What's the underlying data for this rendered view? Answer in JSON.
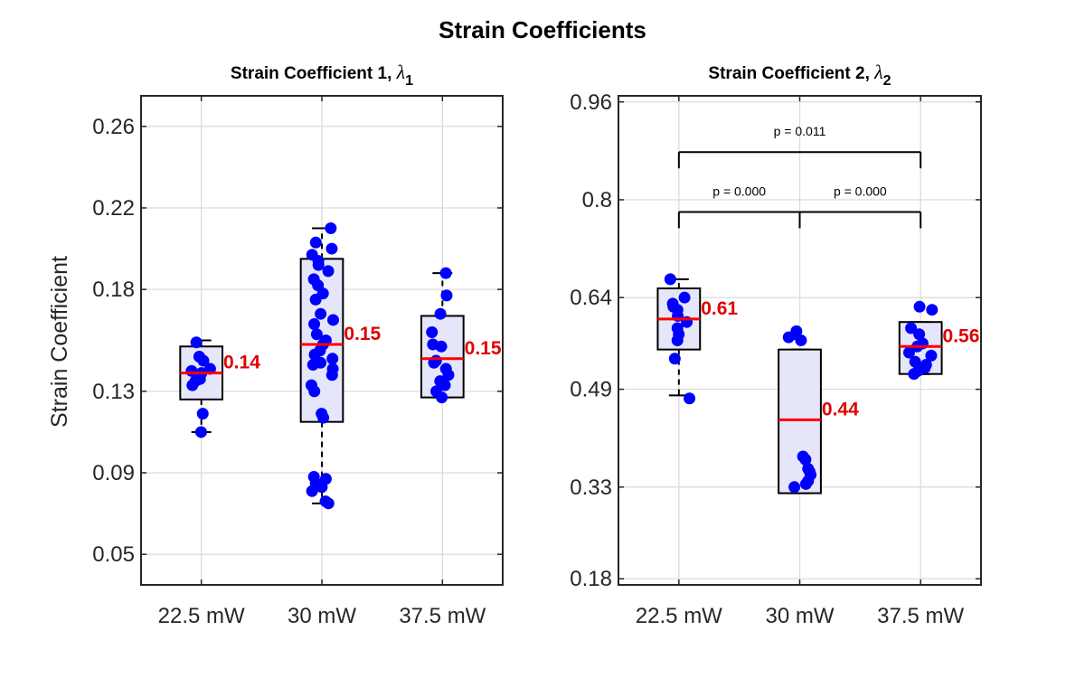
{
  "title": "Strain Coefficients",
  "y_label": "Strain Coefficient",
  "colors": {
    "points": "#0000ff",
    "median": "#ff0000",
    "median_label": "#e00000",
    "box_fill": "#e6e6fa",
    "grid": "#dcdcdc"
  },
  "chart_data": [
    {
      "type": "box",
      "title": "Strain Coefficient 1, ",
      "title_symbol": "λ",
      "title_subscript": "1",
      "categories": [
        "22.5 mW",
        "30 mW",
        "37.5 mW"
      ],
      "ylim": [
        0.035,
        0.275
      ],
      "yticks": [
        0.05,
        0.09,
        0.13,
        0.18,
        0.22,
        0.26
      ],
      "ytick_labels": [
        "0.05",
        "0.09",
        "0.13",
        "0.18",
        "0.22",
        "0.26"
      ],
      "grid": true,
      "boxes": [
        {
          "q1": 0.126,
          "q3": 0.152,
          "median": 0.139,
          "whisker_low": 0.11,
          "whisker_high": 0.155,
          "median_label": "0.14"
        },
        {
          "q1": 0.115,
          "q3": 0.195,
          "median": 0.153,
          "whisker_low": 0.075,
          "whisker_high": 0.21,
          "median_label": "0.15"
        },
        {
          "q1": 0.127,
          "q3": 0.167,
          "median": 0.146,
          "whisker_low": 0.127,
          "whisker_high": 0.188,
          "median_label": "0.15"
        }
      ],
      "points": [
        [
          0.11,
          0.119,
          0.133,
          0.135,
          0.136,
          0.139,
          0.14,
          0.141,
          0.145,
          0.147,
          0.154
        ],
        [
          0.075,
          0.076,
          0.081,
          0.083,
          0.085,
          0.087,
          0.088,
          0.117,
          0.119,
          0.13,
          0.133,
          0.138,
          0.141,
          0.143,
          0.144,
          0.146,
          0.148,
          0.15,
          0.153,
          0.155,
          0.158,
          0.163,
          0.165,
          0.168,
          0.175,
          0.178,
          0.182,
          0.185,
          0.189,
          0.192,
          0.194,
          0.197,
          0.2,
          0.203,
          0.21
        ],
        [
          0.127,
          0.13,
          0.133,
          0.135,
          0.138,
          0.141,
          0.144,
          0.145,
          0.152,
          0.153,
          0.159,
          0.168,
          0.177,
          0.188
        ]
      ],
      "significance": []
    },
    {
      "type": "box",
      "title": "Strain Coefficient 2, ",
      "title_symbol": "λ",
      "title_subscript": "2",
      "categories": [
        "22.5 mW",
        "30 mW",
        "37.5 mW"
      ],
      "ylim": [
        0.17,
        0.97
      ],
      "yticks": [
        0.18,
        0.33,
        0.49,
        0.64,
        0.8,
        0.96
      ],
      "ytick_labels": [
        "0.18",
        "0.33",
        "0.49",
        "0.64",
        "0.8",
        "0.96"
      ],
      "grid": true,
      "boxes": [
        {
          "q1": 0.555,
          "q3": 0.655,
          "median": 0.605,
          "whisker_low": 0.48,
          "whisker_high": 0.67,
          "median_label": "0.61"
        },
        {
          "q1": 0.32,
          "q3": 0.555,
          "median": 0.44,
          "whisker_low": 0.32,
          "whisker_high": 0.555,
          "median_label": "0.44"
        },
        {
          "q1": 0.515,
          "q3": 0.6,
          "median": 0.56,
          "whisker_low": 0.515,
          "whisker_high": 0.6,
          "median_label": "0.56"
        }
      ],
      "points": [
        [
          0.475,
          0.54,
          0.57,
          0.58,
          0.59,
          0.6,
          0.61,
          0.62,
          0.625,
          0.63,
          0.64,
          0.67
        ],
        [
          0.33,
          0.335,
          0.34,
          0.35,
          0.355,
          0.36,
          0.375,
          0.38,
          0.57,
          0.575,
          0.58,
          0.585
        ],
        [
          0.515,
          0.52,
          0.525,
          0.53,
          0.535,
          0.545,
          0.55,
          0.56,
          0.565,
          0.58,
          0.59,
          0.62,
          0.625
        ]
      ],
      "significance": [
        {
          "from": 0,
          "to": 2,
          "label": "p = 0.011",
          "level": 0.878
        },
        {
          "from": 0,
          "to": 1,
          "label": "p = 0.000",
          "level": 0.78
        },
        {
          "from": 1,
          "to": 2,
          "label": "p = 0.000",
          "level": 0.78
        }
      ]
    }
  ]
}
